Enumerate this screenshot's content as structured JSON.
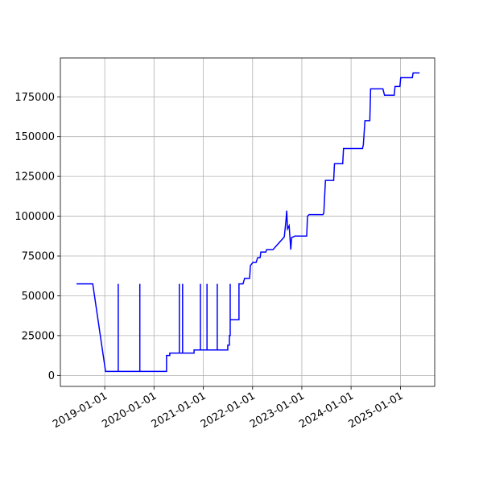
{
  "chart_data": {
    "type": "line",
    "x": [
      "2018-06-06",
      "2018-10-04",
      "2019-01-07",
      "2019-04-11",
      "2019-04-11",
      "2019-04-11",
      "2019-09-18",
      "2019-09-18",
      "2019-09-18",
      "2020-04-03",
      "2020-04-03",
      "2020-04-27",
      "2020-04-27",
      "2020-07-07",
      "2020-07-07",
      "2020-07-07",
      "2020-07-31",
      "2020-07-31",
      "2020-07-31",
      "2020-10-24",
      "2020-10-24",
      "2020-12-10",
      "2020-12-10",
      "2020-12-10",
      "2021-01-28",
      "2021-01-28",
      "2021-01-28",
      "2021-04-14",
      "2021-04-14",
      "2021-04-14",
      "2021-07-01",
      "2021-07-01",
      "2021-07-13",
      "2021-07-13",
      "2021-07-19",
      "2021-07-19",
      "2021-07-19",
      "2021-09-22",
      "2021-09-22",
      "2021-10-22",
      "2021-11-03",
      "2021-12-10",
      "2021-12-16",
      "2022-01-03",
      "2022-01-27",
      "2022-02-08",
      "2022-02-26",
      "2022-03-03",
      "2022-04-09",
      "2022-04-15",
      "2022-06-01",
      "2022-08-24",
      "2022-09-05",
      "2022-09-11",
      "2022-09-17",
      "2022-09-29",
      "2022-10-11",
      "2022-10-17",
      "2022-11-10",
      "2023-02-06",
      "2023-02-12",
      "2023-02-24",
      "2023-06-07",
      "2023-06-13",
      "2023-06-25",
      "2023-08-25",
      "2023-08-31",
      "2023-10-31",
      "2023-11-06",
      "2024-03-26",
      "2024-04-01",
      "2024-04-13",
      "2024-05-19",
      "2024-05-25",
      "2024-08-24",
      "2024-09-05",
      "2024-11-16",
      "2024-11-22",
      "2024-12-28",
      "2025-01-03",
      "2025-03-30",
      "2025-04-05",
      "2025-05-23"
    ],
    "series": [
      {
        "color": "#0000ff",
        "values": [
          57500,
          57500,
          2500,
          2500,
          57500,
          2500,
          2500,
          57500,
          2500,
          2500,
          12500,
          12500,
          14000,
          14000,
          57500,
          14000,
          14000,
          57500,
          14000,
          14000,
          16000,
          16000,
          57500,
          16000,
          16000,
          57500,
          16000,
          16000,
          57500,
          16000,
          16000,
          19000,
          19000,
          25000,
          25000,
          57500,
          35000,
          35000,
          57500,
          57500,
          61000,
          61000,
          69000,
          71000,
          71000,
          74000,
          74000,
          77500,
          77500,
          79000,
          79000,
          87000,
          97000,
          103500,
          92000,
          94000,
          79000,
          86500,
          87500,
          87500,
          100000,
          101000,
          101000,
          102000,
          122500,
          122500,
          133000,
          133000,
          142500,
          142500,
          145000,
          160000,
          160000,
          180000,
          180000,
          176000,
          176000,
          181500,
          181500,
          187000,
          187000,
          190000,
          190000
        ]
      }
    ],
    "xlim": [
      "2018-02-06",
      "2025-09-12"
    ],
    "xticks": [
      "2019-01-01",
      "2020-01-01",
      "2021-01-01",
      "2022-01-01",
      "2023-01-01",
      "2024-01-01",
      "2025-01-01"
    ],
    "ylim": [
      -6900,
      199400
    ],
    "yticks": [
      0,
      25000,
      50000,
      75000,
      100000,
      125000,
      150000,
      175000
    ],
    "grid": true
  }
}
